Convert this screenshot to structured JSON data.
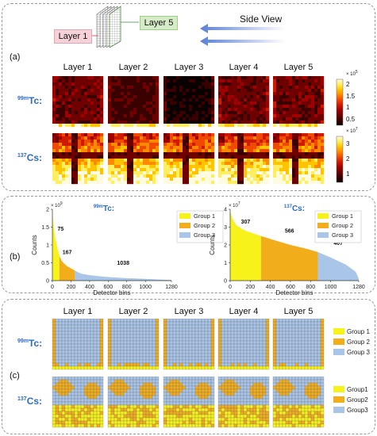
{
  "top": {
    "layer_first": "Layer 1",
    "layer_last": "Layer 5",
    "side_view": "Side View"
  },
  "panel_a": {
    "label": "(a)",
    "layers": [
      "Layer 1",
      "Layer 2",
      "Layer 3",
      "Layer 4",
      "Layer 5"
    ],
    "rows": [
      {
        "iso_sup": "99m",
        "iso_sym": "Tc:",
        "cbar_exp": "× 10",
        "cbar_exp_sup": "5",
        "ticks": [
          "2",
          "1.5",
          "1",
          "0.5"
        ]
      },
      {
        "iso_sup": "137",
        "iso_sym": "Cs:",
        "cbar_exp": "× 10",
        "cbar_exp_sup": "7",
        "ticks": [
          "3",
          "2",
          "1"
        ]
      }
    ]
  },
  "panel_b": {
    "label": "(b)",
    "legend": [
      "Group 1",
      "Group 2",
      "Group 3"
    ],
    "colors": {
      "g1": "#f7f21a",
      "g2": "#f2ad1b",
      "g3": "#a9c5e8"
    }
  },
  "panel_c": {
    "label": "(c)",
    "layers": [
      "Layer 1",
      "Layer 2",
      "Layer 3",
      "Layer 4",
      "Layer 5"
    ],
    "rows": [
      {
        "iso_sup": "99m",
        "iso_sym": "Tc:",
        "legend": [
          "Group 1",
          "Group 2",
          "Group 3"
        ]
      },
      {
        "iso_sup": "137",
        "iso_sym": "Cs:",
        "legend": [
          "Group1",
          "Group2",
          "Group3"
        ]
      }
    ]
  },
  "chart_data": [
    {
      "type": "area",
      "isotope": "99mTc:",
      "ylabel": "Counts",
      "xlabel": "Detector bins",
      "y_multiplier": "× 10^9",
      "ylim": [
        0,
        2
      ],
      "xlim": [
        0,
        1280
      ],
      "xticks": [
        0,
        200,
        400,
        600,
        800,
        1000,
        1280
      ],
      "yticks": [
        0,
        0.5,
        1,
        1.5,
        2
      ],
      "groups": [
        {
          "name": "Group 1",
          "count": 75,
          "x_range": [
            0,
            75
          ]
        },
        {
          "name": "Group 2",
          "count": 167,
          "x_range": [
            75,
            242
          ]
        },
        {
          "name": "Group 3",
          "count": 1038,
          "x_range": [
            242,
            1280
          ]
        }
      ],
      "curve": [
        [
          0,
          2.0
        ],
        [
          10,
          1.6
        ],
        [
          30,
          1.2
        ],
        [
          60,
          0.85
        ],
        [
          75,
          0.7
        ],
        [
          100,
          0.55
        ],
        [
          150,
          0.42
        ],
        [
          242,
          0.28
        ],
        [
          300,
          0.2
        ],
        [
          400,
          0.15
        ],
        [
          600,
          0.1
        ],
        [
          800,
          0.07
        ],
        [
          1000,
          0.05
        ],
        [
          1150,
          0.03
        ],
        [
          1280,
          0.02
        ]
      ]
    },
    {
      "type": "area",
      "isotope": "137Cs:",
      "ylabel": "Counts",
      "xlabel": "Detector bins",
      "y_multiplier": "× 10^7",
      "ylim": [
        0,
        4
      ],
      "xlim": [
        0,
        1280
      ],
      "xticks": [
        0,
        200,
        400,
        600,
        800,
        1000,
        1280
      ],
      "yticks": [
        0,
        1,
        2,
        3,
        4
      ],
      "groups": [
        {
          "name": "Group 1",
          "count": 307,
          "x_range": [
            0,
            307
          ]
        },
        {
          "name": "Group 2",
          "count": 566,
          "x_range": [
            307,
            873
          ]
        },
        {
          "name": "Group 3",
          "count": 407,
          "x_range": [
            873,
            1280
          ]
        }
      ],
      "curve": [
        [
          0,
          3.9
        ],
        [
          20,
          3.5
        ],
        [
          60,
          3.1
        ],
        [
          150,
          2.8
        ],
        [
          307,
          2.5
        ],
        [
          450,
          2.25
        ],
        [
          600,
          2.0
        ],
        [
          750,
          1.8
        ],
        [
          873,
          1.6
        ],
        [
          1000,
          1.3
        ],
        [
          1150,
          0.9
        ],
        [
          1250,
          0.5
        ],
        [
          1280,
          0.1
        ]
      ]
    }
  ]
}
